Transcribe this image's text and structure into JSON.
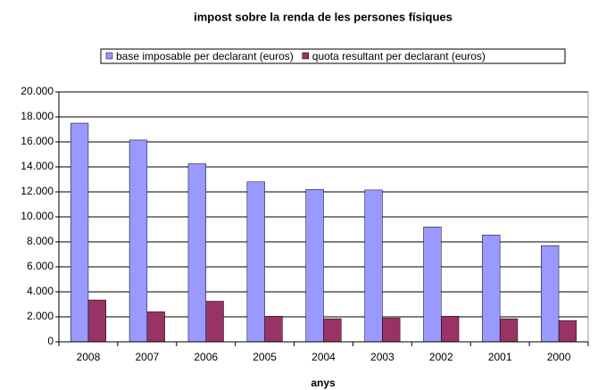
{
  "chart_data": {
    "type": "bar",
    "title": "impost sobre la renda de les persones físiques",
    "x_label": "anys",
    "categories": [
      "2008",
      "2007",
      "2006",
      "2005",
      "2004",
      "2003",
      "2002",
      "2001",
      "2000"
    ],
    "series": [
      {
        "name": "base imposable per declarant (euros)",
        "color": "#9999ff",
        "values": [
          17500,
          16150,
          14250,
          12800,
          12200,
          12150,
          9200,
          8550,
          7700
        ]
      },
      {
        "name": "quota resultant per declarant (euros)",
        "color": "#993366",
        "values": [
          3350,
          2400,
          3250,
          2050,
          1850,
          1900,
          2050,
          1850,
          1700
        ]
      }
    ],
    "ylim": [
      0,
      20000
    ],
    "yticks": [
      0,
      {
        "value": 2000,
        "label": "2.000"
      },
      {
        "value": 4000,
        "label": "4.000"
      },
      {
        "value": 6000,
        "label": "6.000"
      },
      {
        "value": 8000,
        "label": "8.000"
      },
      {
        "value": 10000,
        "label": "10.000"
      },
      {
        "value": 12000,
        "label": "12.000"
      },
      {
        "value": 14000,
        "label": "14.000"
      },
      {
        "value": 16000,
        "label": "16.000"
      },
      {
        "value": 18000,
        "label": "18.000"
      },
      {
        "value": 20000,
        "label": "20.000"
      }
    ],
    "grid": true,
    "legend": "top"
  }
}
